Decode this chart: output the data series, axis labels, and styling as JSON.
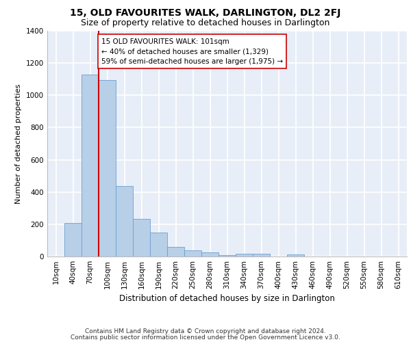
{
  "title": "15, OLD FAVOURITES WALK, DARLINGTON, DL2 2FJ",
  "subtitle": "Size of property relative to detached houses in Darlington",
  "xlabel": "Distribution of detached houses by size in Darlington",
  "ylabel": "Number of detached properties",
  "categories": [
    "10sqm",
    "40sqm",
    "70sqm",
    "100sqm",
    "130sqm",
    "160sqm",
    "190sqm",
    "220sqm",
    "250sqm",
    "280sqm",
    "310sqm",
    "340sqm",
    "370sqm",
    "400sqm",
    "430sqm",
    "460sqm",
    "490sqm",
    "520sqm",
    "550sqm",
    "580sqm",
    "610sqm"
  ],
  "values": [
    0,
    210,
    1130,
    1095,
    435,
    232,
    147,
    58,
    40,
    27,
    10,
    17,
    17,
    0,
    12,
    0,
    0,
    0,
    0,
    0,
    0
  ],
  "bar_color": "#b8cfe8",
  "bar_edgecolor": "#6a9fd0",
  "background_color": "#e8eef8",
  "grid_color": "#ffffff",
  "property_line_color": "#cc0000",
  "property_line_index": 3,
  "annotation_text": "15 OLD FAVOURITES WALK: 101sqm\n← 40% of detached houses are smaller (1,329)\n59% of semi-detached houses are larger (1,975) →",
  "annotation_box_facecolor": "#ffffff",
  "annotation_box_edgecolor": "#cc0000",
  "ylim": [
    0,
    1400
  ],
  "footnote_line1": "Contains HM Land Registry data © Crown copyright and database right 2024.",
  "footnote_line2": "Contains public sector information licensed under the Open Government Licence v3.0.",
  "title_fontsize": 10,
  "subtitle_fontsize": 9,
  "xlabel_fontsize": 8.5,
  "ylabel_fontsize": 8,
  "tick_fontsize": 7.5,
  "annotation_fontsize": 7.5,
  "footnote_fontsize": 6.5
}
